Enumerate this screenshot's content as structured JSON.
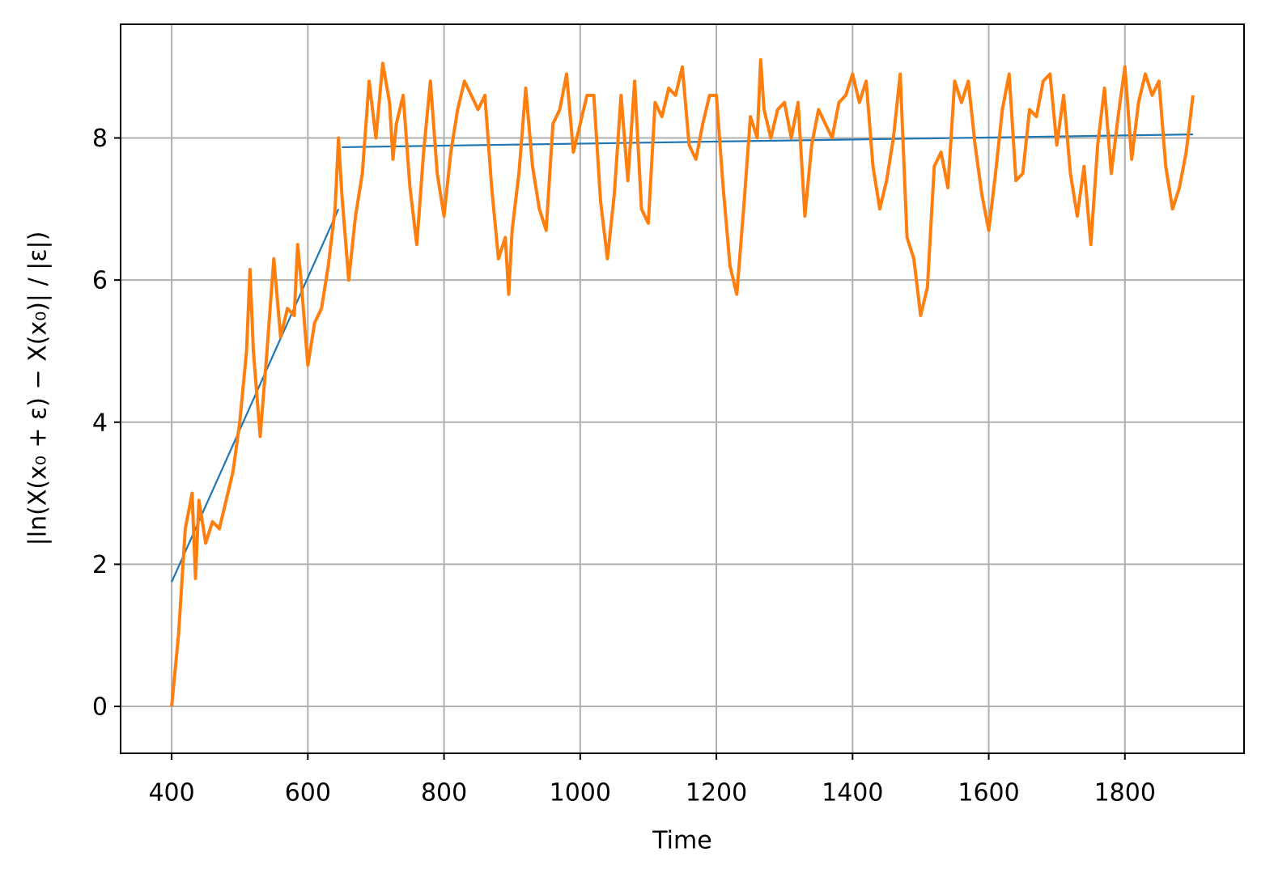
{
  "chart_data": {
    "type": "line",
    "xlabel": "Time",
    "ylabel": "|ln(X(x₀ + ε) − X(x₀)| / |ε|)",
    "xlim": [
      325,
      1975
    ],
    "ylim": [
      -0.66,
      9.6
    ],
    "xticks": [
      400,
      600,
      800,
      1000,
      1200,
      1400,
      1600,
      1800
    ],
    "yticks": [
      0,
      2,
      4,
      6,
      8
    ],
    "grid": true,
    "series": [
      {
        "color": "#1f77b4",
        "x": [
          400,
          645
        ],
        "values": [
          1.75,
          7.0
        ]
      },
      {
        "color": "#1f77b4",
        "x": [
          650,
          1900
        ],
        "values": [
          7.87,
          8.05
        ]
      },
      {
        "color": "#ff7f0e",
        "x": [
          400,
          410,
          420,
          430,
          435,
          440,
          450,
          460,
          470,
          480,
          490,
          500,
          510,
          515,
          520,
          530,
          540,
          550,
          560,
          570,
          580,
          585,
          590,
          600,
          610,
          620,
          630,
          640,
          645,
          650,
          660,
          670,
          680,
          690,
          700,
          710,
          720,
          725,
          730,
          740,
          750,
          760,
          770,
          780,
          790,
          800,
          810,
          820,
          830,
          840,
          850,
          860,
          870,
          880,
          890,
          895,
          900,
          910,
          920,
          930,
          940,
          950,
          960,
          970,
          980,
          990,
          1000,
          1010,
          1020,
          1030,
          1040,
          1050,
          1060,
          1070,
          1080,
          1090,
          1100,
          1110,
          1120,
          1130,
          1140,
          1150,
          1160,
          1170,
          1180,
          1190,
          1200,
          1210,
          1220,
          1230,
          1240,
          1250,
          1260,
          1265,
          1270,
          1280,
          1290,
          1300,
          1310,
          1320,
          1330,
          1340,
          1350,
          1360,
          1370,
          1380,
          1390,
          1400,
          1410,
          1420,
          1430,
          1440,
          1450,
          1460,
          1470,
          1480,
          1490,
          1500,
          1510,
          1520,
          1530,
          1540,
          1550,
          1560,
          1570,
          1580,
          1590,
          1600,
          1610,
          1620,
          1630,
          1640,
          1650,
          1660,
          1670,
          1680,
          1690,
          1700,
          1710,
          1720,
          1730,
          1740,
          1750,
          1760,
          1770,
          1780,
          1790,
          1800,
          1810,
          1820,
          1830,
          1840,
          1850,
          1860,
          1870,
          1880,
          1890,
          1900
        ],
        "values": [
          0,
          1.0,
          2.5,
          3.0,
          1.8,
          2.9,
          2.3,
          2.6,
          2.5,
          2.9,
          3.3,
          4.0,
          5.0,
          6.15,
          5.0,
          3.8,
          5.0,
          6.3,
          5.2,
          5.6,
          5.5,
          6.5,
          6.0,
          4.8,
          5.4,
          5.6,
          6.2,
          7.0,
          8.0,
          7.2,
          6.0,
          6.9,
          7.5,
          8.8,
          8.0,
          9.05,
          8.5,
          7.7,
          8.2,
          8.6,
          7.3,
          6.5,
          7.8,
          8.8,
          7.5,
          6.9,
          7.8,
          8.4,
          8.8,
          8.6,
          8.4,
          8.6,
          7.3,
          6.3,
          6.6,
          5.8,
          6.7,
          7.5,
          8.7,
          7.6,
          7.0,
          6.7,
          8.2,
          8.4,
          8.9,
          7.8,
          8.2,
          8.6,
          8.6,
          7.1,
          6.3,
          7.2,
          8.6,
          7.4,
          8.8,
          7.0,
          6.8,
          8.5,
          8.3,
          8.7,
          8.6,
          9.0,
          7.9,
          7.7,
          8.2,
          8.6,
          8.6,
          7.3,
          6.2,
          5.8,
          7.0,
          8.3,
          8.0,
          9.1,
          8.4,
          8.0,
          8.4,
          8.5,
          8.0,
          8.5,
          6.9,
          7.9,
          8.4,
          8.2,
          8.0,
          8.5,
          8.6,
          8.9,
          8.5,
          8.8,
          7.6,
          7.0,
          7.4,
          8.0,
          8.9,
          6.6,
          6.3,
          5.5,
          5.9,
          7.6,
          7.8,
          7.3,
          8.8,
          8.5,
          8.8,
          7.9,
          7.2,
          6.7,
          7.5,
          8.4,
          8.9,
          7.4,
          7.5,
          8.4,
          8.3,
          8.8,
          8.9,
          7.9,
          8.6,
          7.5,
          6.9,
          7.6,
          6.5,
          7.9,
          8.7,
          7.5,
          8.3,
          9.0,
          7.7,
          8.5,
          8.9,
          8.6,
          8.8,
          7.6,
          7.0,
          7.3,
          7.8,
          8.6
        ]
      }
    ]
  }
}
